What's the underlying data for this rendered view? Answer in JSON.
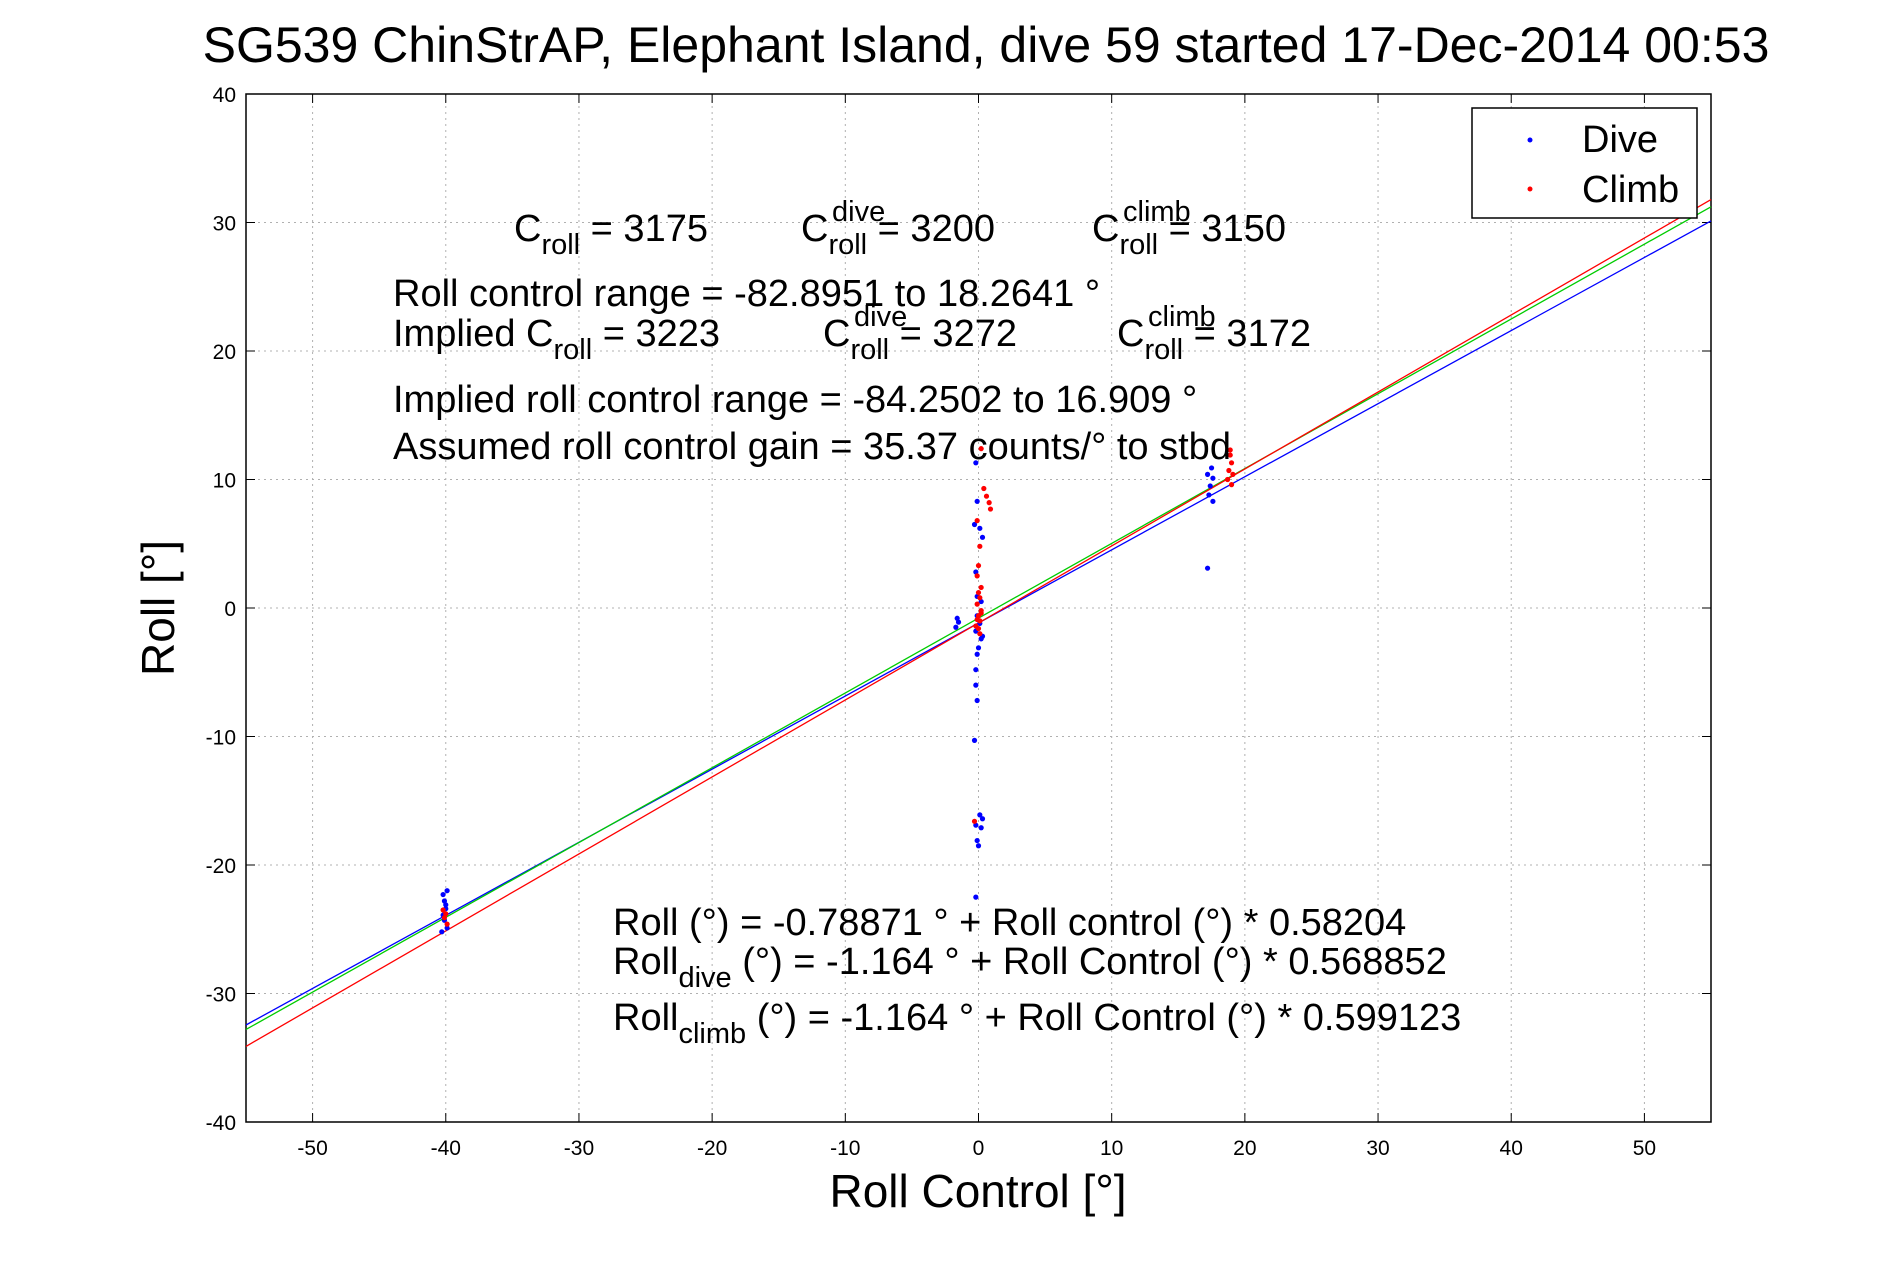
{
  "chart_data": {
    "type": "scatter",
    "title": "SG539 ChinStrAP, Elephant Island, dive 59 started 17-Dec-2014 00:53",
    "xlabel": "Roll Control [°]",
    "ylabel": "Roll [°]",
    "xlim": [
      -55,
      55
    ],
    "ylim": [
      -40,
      40
    ],
    "xticks": [
      -50,
      -40,
      -30,
      -20,
      -10,
      0,
      10,
      20,
      30,
      40,
      50
    ],
    "yticks": [
      -40,
      -30,
      -20,
      -10,
      0,
      10,
      20,
      30,
      40
    ],
    "grid": true,
    "legend_position": "top-right",
    "series": [
      {
        "name": "Dive",
        "color": "#0000ff",
        "points": [
          [
            -40.2,
            -22.3
          ],
          [
            -40.1,
            -22.8
          ],
          [
            -39.9,
            -22.0
          ],
          [
            -40.0,
            -23.4
          ],
          [
            -40.2,
            -23.9
          ],
          [
            -40.1,
            -24.3
          ],
          [
            -39.9,
            -24.9
          ],
          [
            -40.3,
            -25.2
          ],
          [
            -40.0,
            -23.1
          ],
          [
            -1.6,
            -0.8
          ],
          [
            -1.7,
            -1.5
          ],
          [
            -1.5,
            -1.1
          ],
          [
            -0.2,
            11.3
          ],
          [
            -0.1,
            8.3
          ],
          [
            -0.3,
            6.5
          ],
          [
            0.1,
            6.2
          ],
          [
            0.3,
            5.5
          ],
          [
            -0.2,
            2.8
          ],
          [
            -0.1,
            0.9
          ],
          [
            0.2,
            0.5
          ],
          [
            -0.1,
            -0.6
          ],
          [
            0.1,
            -1.2
          ],
          [
            -0.2,
            -1.8
          ],
          [
            0.2,
            -2.4
          ],
          [
            0.0,
            -3.1
          ],
          [
            -0.1,
            -3.6
          ],
          [
            0.3,
            -2.2
          ],
          [
            -0.2,
            -4.8
          ],
          [
            -0.2,
            -6.0
          ],
          [
            -0.1,
            -7.2
          ],
          [
            -0.3,
            -10.3
          ],
          [
            0.1,
            -16.1
          ],
          [
            0.3,
            -16.4
          ],
          [
            -0.2,
            -16.9
          ],
          [
            0.2,
            -17.1
          ],
          [
            -0.1,
            -18.1
          ],
          [
            0.0,
            -18.5
          ],
          [
            -0.2,
            -22.5
          ],
          [
            17.2,
            10.4
          ],
          [
            17.5,
            10.9
          ],
          [
            17.4,
            9.5
          ],
          [
            17.3,
            8.8
          ],
          [
            17.6,
            8.3
          ],
          [
            17.2,
            3.1
          ],
          [
            17.6,
            10.1
          ]
        ]
      },
      {
        "name": "Climb",
        "color": "#ff0000",
        "points": [
          [
            -40.2,
            -23.5
          ],
          [
            -40.0,
            -23.8
          ],
          [
            -40.1,
            -24.1
          ],
          [
            -39.9,
            -24.6
          ],
          [
            0.2,
            12.4
          ],
          [
            0.4,
            9.3
          ],
          [
            0.6,
            8.7
          ],
          [
            0.8,
            8.2
          ],
          [
            0.9,
            7.7
          ],
          [
            -0.1,
            6.8
          ],
          [
            0.1,
            4.8
          ],
          [
            0.0,
            3.3
          ],
          [
            -0.1,
            2.5
          ],
          [
            0.2,
            1.6
          ],
          [
            0.0,
            1.2
          ],
          [
            0.1,
            0.8
          ],
          [
            -0.1,
            0.3
          ],
          [
            0.2,
            -0.2
          ],
          [
            0.0,
            -0.6
          ],
          [
            0.1,
            -1.0
          ],
          [
            -0.2,
            -1.4
          ],
          [
            0.2,
            -0.4
          ],
          [
            -0.1,
            -0.9
          ],
          [
            0.0,
            -1.6
          ],
          [
            0.1,
            -2.0
          ],
          [
            -0.3,
            -16.6
          ],
          [
            18.9,
            11.9
          ],
          [
            19.0,
            11.3
          ],
          [
            18.8,
            10.7
          ],
          [
            19.1,
            10.4
          ],
          [
            18.9,
            12.3
          ],
          [
            18.7,
            10.0
          ],
          [
            19.0,
            9.6
          ]
        ]
      }
    ],
    "fit_lines": [
      {
        "color": "#0000ff",
        "intercept": -1.164,
        "slope": 0.568852
      },
      {
        "color": "#00cc00",
        "intercept": -0.78871,
        "slope": 0.58204
      },
      {
        "color": "#ff0000",
        "intercept": -1.164,
        "slope": 0.599123
      }
    ],
    "annotations": {
      "c_roll": {
        "base": "C",
        "sub": "roll",
        "sup": "",
        "value": " = 3175"
      },
      "c_roll_dive": {
        "base": "C",
        "sub": "roll",
        "sup": "dive",
        "value": " = 3200"
      },
      "c_roll_climb": {
        "base": "C",
        "sub": "roll",
        "sup": "climb",
        "value": " = 3150"
      },
      "range": "Roll control range = -82.8951 to 18.2641 °",
      "implied_prefix": "Implied C",
      "implied_sub": "roll",
      "implied_value": " = 3223",
      "implied_dive": {
        "base": "C",
        "sub": "roll",
        "sup": "dive",
        "value": " = 3272"
      },
      "implied_climb": {
        "base": "C",
        "sub": "roll",
        "sup": "climb",
        "value": " = 3172"
      },
      "implied_range": "Implied roll control range = -84.2502 to 16.909 °",
      "gain": "Assumed roll control gain = 35.37 counts/° to stbd",
      "fit_all": "Roll (°) = -0.78871 ° + Roll control (°) * 0.58204",
      "fit_dive": {
        "base": "Roll",
        "sub": "dive",
        "rest": " (°) = -1.164 ° + Roll Control (°) * 0.568852"
      },
      "fit_climb": {
        "base": "Roll",
        "sub": "climb",
        "rest": " (°) = -1.164 ° + Roll Control (°) * 0.599123"
      }
    }
  }
}
